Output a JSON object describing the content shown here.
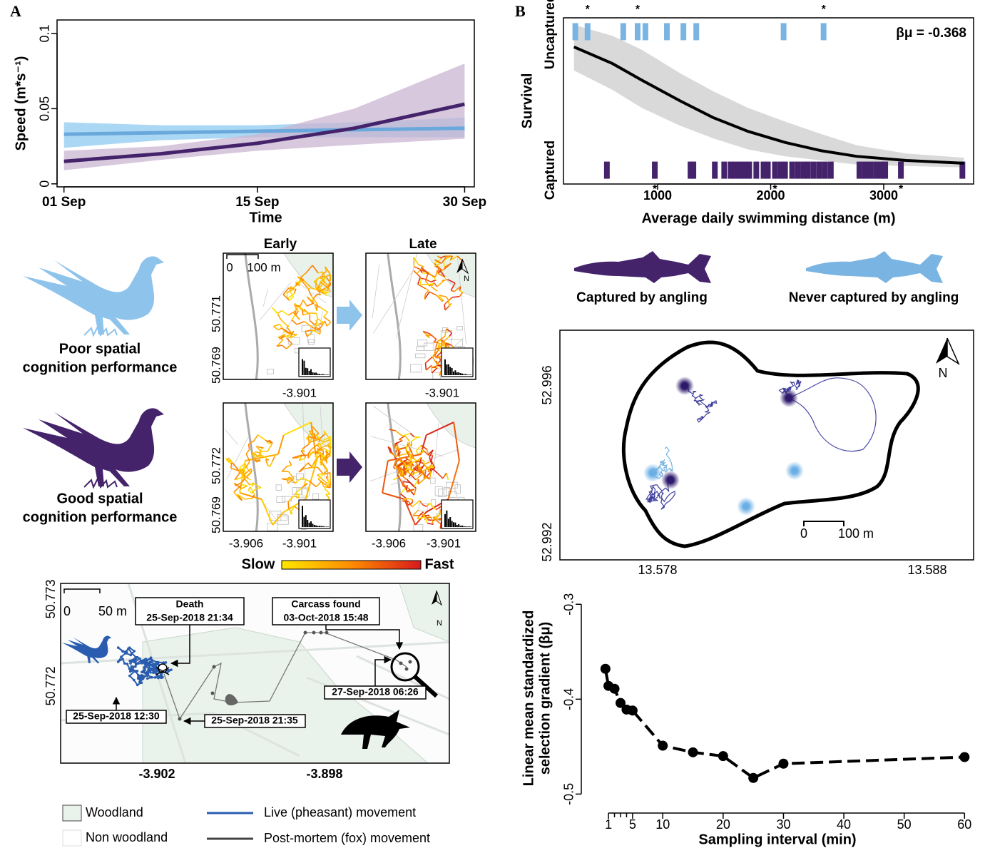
{
  "panel_labels": [
    "A",
    "B"
  ],
  "chart_data": [
    {
      "type": "line",
      "x_label": "Time",
      "y_label": "Speed (m*s⁻¹)",
      "x": [
        1,
        8,
        15,
        22,
        30
      ],
      "xlim": [
        0.5,
        30.7
      ],
      "xticks": [
        {
          "value": 1,
          "label": "01 Sep"
        },
        {
          "value": 15,
          "label": "15 Sep"
        },
        {
          "value": 30,
          "label": "30 Sep"
        }
      ],
      "ylim": [
        -0.002,
        0.109
      ],
      "yticks": [
        0,
        0.05,
        0.1
      ],
      "frame": true,
      "series": [
        {
          "color": "#6aa8dc",
          "band_color": "#8ecbf0",
          "values": [
            0.033,
            0.034,
            0.035,
            0.036,
            0.037
          ],
          "lower": [
            0.024,
            0.029,
            0.031,
            0.031,
            0.031
          ],
          "upper": [
            0.041,
            0.039,
            0.039,
            0.041,
            0.044
          ]
        },
        {
          "color": "#44236b",
          "band_color": "#c9b5d1",
          "values": [
            0.015,
            0.02,
            0.027,
            0.037,
            0.053
          ],
          "lower": [
            0.009,
            0.016,
            0.022,
            0.026,
            0.03
          ],
          "upper": [
            0.022,
            0.025,
            0.033,
            0.05,
            0.08
          ]
        }
      ]
    },
    {
      "type": "rug",
      "x_label": "Average daily swimming distance (m)",
      "y_label": "Survival",
      "annotation": "βμ = -0.368",
      "asterisk": "*",
      "xlim": [
        167,
        3795
      ],
      "xticks": [
        1000,
        2000,
        3000
      ],
      "ylim": [
        -0.1,
        1.1
      ],
      "yticks": [
        {
          "value": 0,
          "label": "Captured"
        },
        {
          "value": 1,
          "label": "Uncaptured"
        }
      ],
      "series": [
        {
          "name": "Never captured by angling",
          "color": "#7ab4e2",
          "starred": [
            1,
            3,
            9
          ],
          "x": [
            272,
            380,
            696,
            823,
            892,
            1082,
            1228,
            1342,
            2114,
            2468
          ],
          "values": [
            1,
            1,
            1,
            1,
            1,
            1,
            1,
            1,
            1,
            1
          ]
        },
        {
          "name": "Captured by angling",
          "color": "#44236b",
          "starred": [
            1,
            14,
            31
          ],
          "x": [
            551,
            975,
            1291,
            1316,
            1506,
            1589,
            1646,
            1684,
            1728,
            1772,
            1810,
            1873,
            1937,
            1975,
            2038,
            2089,
            2127,
            2190,
            2241,
            2291,
            2329,
            2380,
            2431,
            2481,
            2532,
            2785,
            2836,
            2886,
            2937,
            2987,
            3013,
            3152,
            3696
          ],
          "values": [
            0,
            0,
            0,
            0,
            0,
            0,
            0,
            0,
            0,
            0,
            0,
            0,
            0,
            0,
            0,
            0,
            0,
            0,
            0,
            0,
            0,
            0,
            0,
            0,
            0,
            0,
            0,
            0,
            0,
            0,
            0,
            0,
            0
          ]
        }
      ],
      "fit": {
        "color": "#000000",
        "band_color": "#d9d9d9",
        "x": [
          260,
          600,
          860,
          1200,
          1490,
          1800,
          2130,
          2450,
          2760,
          3200,
          3710
        ],
        "values": [
          0.89,
          0.77,
          0.65,
          0.5,
          0.38,
          0.28,
          0.2,
          0.14,
          0.1,
          0.07,
          0.05
        ],
        "lower": [
          0.72,
          0.58,
          0.45,
          0.32,
          0.23,
          0.15,
          0.1,
          0.07,
          0.04,
          0.03,
          0.02
        ],
        "upper": [
          1.05,
          0.97,
          0.87,
          0.7,
          0.57,
          0.45,
          0.35,
          0.26,
          0.18,
          0.12,
          0.09
        ]
      }
    },
    {
      "type": "line",
      "x_label": "Sampling interval (min)",
      "y_label": [
        "Linear mean standardized",
        "selection gradient (βμ)"
      ],
      "x": [
        0.5,
        1,
        2,
        3,
        4,
        5,
        10,
        15,
        20,
        25,
        30,
        60
      ],
      "xlim": [
        -3.5,
        61.5
      ],
      "xticks": [
        1,
        5,
        10,
        20,
        30,
        40,
        50,
        60
      ],
      "xminor": [
        2,
        3,
        4
      ],
      "ylim": [
        -0.52,
        -0.278
      ],
      "yticks": [
        -0.5,
        -0.4,
        -0.3
      ],
      "frame": false,
      "markers": true,
      "dashed": true,
      "series": [
        {
          "color": "#000000",
          "values": [
            -0.368,
            -0.386,
            -0.389,
            -0.404,
            -0.411,
            -0.412,
            -0.449,
            -0.456,
            -0.46,
            -0.483,
            -0.468,
            -0.461
          ]
        }
      ]
    }
  ],
  "pheasant_legend": {
    "poor": [
      "Poor spatial",
      "cognition performance"
    ],
    "good": [
      "Good spatial",
      "cognition performance"
    ]
  },
  "tracking_maps": {
    "early": "Early",
    "late": "Late",
    "scale": [
      "0",
      "100 m"
    ],
    "north": "N",
    "top_yticks": [
      50.771,
      50.769
    ],
    "bottom_yticks": [
      50.772,
      50.769
    ],
    "top_xticks": [
      -3.901
    ],
    "bottom_xticks": [
      -3.906,
      -3.901
    ],
    "slow": "Slow",
    "fast": "Fast"
  },
  "death_map": {
    "yticks": [
      50.773,
      50.772
    ],
    "xticks": [
      -3.902,
      -3.898
    ],
    "scale": [
      "0",
      "50 m"
    ],
    "north": "N",
    "death": [
      "Death",
      "25-Sep-2018 21:34"
    ],
    "carcass": [
      "Carcass found",
      "03-Oct-2018 15:48"
    ],
    "times": [
      "27-Sep-2018 06:26",
      "25-Sep-2018 12:30",
      "25-Sep-2018 21:35"
    ]
  },
  "map_legend": {
    "woodland": "Woodland",
    "non_woodland": "Non woodland",
    "live": "Live (pheasant) movement",
    "post_mortem": "Post-mortem (fox) movement"
  },
  "lake_map": {
    "yticks": [
      52.996,
      52.992
    ],
    "xticks": [
      13.578,
      13.588
    ],
    "scale": [
      "0",
      "100 m"
    ],
    "north": "N"
  }
}
